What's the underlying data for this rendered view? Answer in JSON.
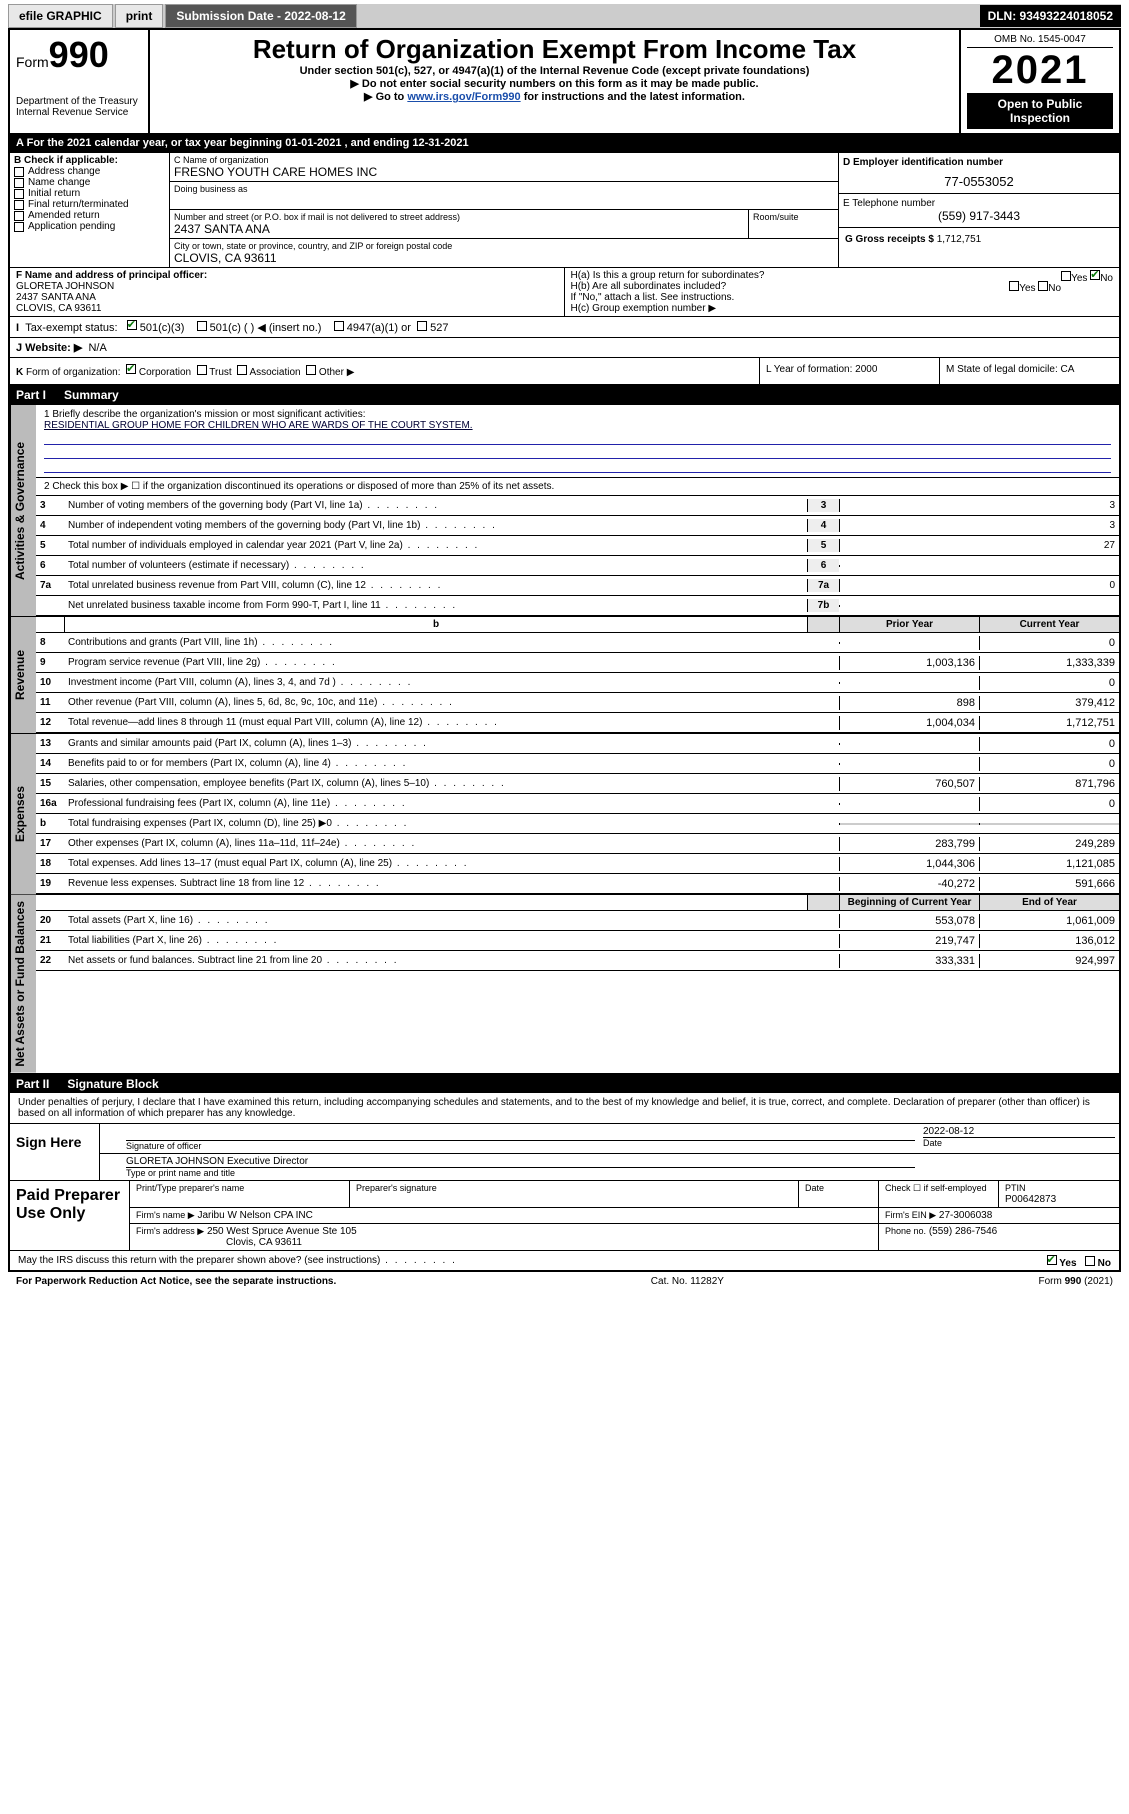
{
  "topbar": {
    "efile": "efile GRAPHIC",
    "print": "print",
    "subdate_lbl": "Submission Date - 2022-08-12",
    "dln": "DLN: 93493224018052"
  },
  "header": {
    "form_pre": "Form",
    "form_num": "990",
    "dept": "Department of the Treasury",
    "irs": "Internal Revenue Service",
    "title": "Return of Organization Exempt From Income Tax",
    "sub1": "Under section 501(c), 527, or 4947(a)(1) of the Internal Revenue Code (except private foundations)",
    "sub2": "▶ Do not enter social security numbers on this form as it may be made public.",
    "sub3_pre": "▶ Go to ",
    "sub3_link": "www.irs.gov/Form990",
    "sub3_post": " for instructions and the latest information.",
    "omb": "OMB No. 1545-0047",
    "year": "2021",
    "open": "Open to Public Inspection"
  },
  "taxyear": "For the 2021 calendar year, or tax year beginning 01-01-2021  , and ending 12-31-2021",
  "boxA": "A",
  "boxB": {
    "title": "B Check if applicable:",
    "items": [
      "Address change",
      "Name change",
      "Initial return",
      "Final return/terminated",
      "Amended return",
      "Application pending"
    ]
  },
  "boxC": {
    "lbl": "C Name of organization",
    "name": "FRESNO YOUTH CARE HOMES INC",
    "dba_lbl": "Doing business as",
    "addr_lbl": "Number and street (or P.O. box if mail is not delivered to street address)",
    "room_lbl": "Room/suite",
    "addr": "2437 SANTA ANA",
    "city_lbl": "City or town, state or province, country, and ZIP or foreign postal code",
    "city": "CLOVIS, CA  93611"
  },
  "boxD": {
    "lbl": "D Employer identification number",
    "val": "77-0553052"
  },
  "boxE": {
    "lbl": "E Telephone number",
    "val": "(559) 917-3443"
  },
  "boxG": {
    "lbl": "G Gross receipts $",
    "val": "1,712,751"
  },
  "boxF": {
    "lbl": "F Name and address of principal officer:",
    "name": "GLORETA JOHNSON",
    "addr": "2437 SANTA ANA",
    "city": "CLOVIS, CA  93611"
  },
  "boxH": {
    "ha": "H(a)  Is this a group return for subordinates?",
    "hb": "H(b)  Are all subordinates included?",
    "hnote": "If \"No,\" attach a list. See instructions.",
    "hc": "H(c)  Group exemption number ▶",
    "yes": "Yes",
    "no": "No"
  },
  "boxI": {
    "lbl": "Tax-exempt status:",
    "c3": "501(c)(3)",
    "c": "501(c) (  ) ◀ (insert no.)",
    "c4947": "4947(a)(1) or",
    "c527": "527"
  },
  "boxJ": {
    "lbl": "J  Website: ▶",
    "val": "N/A"
  },
  "boxK": "K Form of organization:     Corporation     Trust     Association     Other ▶",
  "boxL": {
    "lbl": "L Year of formation:",
    "val": "2000"
  },
  "boxM": {
    "lbl": "M State of legal domicile:",
    "val": "CA"
  },
  "part1": {
    "num": "Part I",
    "title": "Summary"
  },
  "mission": {
    "lbl": "1  Briefly describe the organization's mission or most significant activities:",
    "txt": "RESIDENTIAL GROUP HOME FOR CHILDREN WHO ARE WARDS OF THE COURT SYSTEM."
  },
  "line2": "2  Check this box ▶ ☐  if the organization discontinued its operations or disposed of more than 25% of its net assets.",
  "sidetabs": [
    "Activities & Governance",
    "Revenue",
    "Expenses",
    "Net Assets or Fund Balances"
  ],
  "colhdr": {
    "py": "Prior Year",
    "cy": "Current Year",
    "boy": "Beginning of Current Year",
    "eoy": "End of Year"
  },
  "rows_gov": [
    {
      "n": "3",
      "d": "Number of voting members of the governing body (Part VI, line 1a)",
      "k": "3",
      "v": "3"
    },
    {
      "n": "4",
      "d": "Number of independent voting members of the governing body (Part VI, line 1b)",
      "k": "4",
      "v": "3"
    },
    {
      "n": "5",
      "d": "Total number of individuals employed in calendar year 2021 (Part V, line 2a)",
      "k": "5",
      "v": "27"
    },
    {
      "n": "6",
      "d": "Total number of volunteers (estimate if necessary)",
      "k": "6",
      "v": ""
    },
    {
      "n": "7a",
      "d": "Total unrelated business revenue from Part VIII, column (C), line 12",
      "k": "7a",
      "v": "0"
    },
    {
      "n": "",
      "d": "Net unrelated business taxable income from Form 990-T, Part I, line 11",
      "k": "7b",
      "v": ""
    }
  ],
  "rows_rev": [
    {
      "n": "8",
      "d": "Contributions and grants (Part VIII, line 1h)",
      "py": "",
      "cy": "0"
    },
    {
      "n": "9",
      "d": "Program service revenue (Part VIII, line 2g)",
      "py": "1,003,136",
      "cy": "1,333,339"
    },
    {
      "n": "10",
      "d": "Investment income (Part VIII, column (A), lines 3, 4, and 7d )",
      "py": "",
      "cy": "0"
    },
    {
      "n": "11",
      "d": "Other revenue (Part VIII, column (A), lines 5, 6d, 8c, 9c, 10c, and 11e)",
      "py": "898",
      "cy": "379,412"
    },
    {
      "n": "12",
      "d": "Total revenue—add lines 8 through 11 (must equal Part VIII, column (A), line 12)",
      "py": "1,004,034",
      "cy": "1,712,751"
    }
  ],
  "rows_exp": [
    {
      "n": "13",
      "d": "Grants and similar amounts paid (Part IX, column (A), lines 1–3)",
      "py": "",
      "cy": "0"
    },
    {
      "n": "14",
      "d": "Benefits paid to or for members (Part IX, column (A), line 4)",
      "py": "",
      "cy": "0"
    },
    {
      "n": "15",
      "d": "Salaries, other compensation, employee benefits (Part IX, column (A), lines 5–10)",
      "py": "760,507",
      "cy": "871,796"
    },
    {
      "n": "16a",
      "d": "Professional fundraising fees (Part IX, column (A), line 11e)",
      "py": "",
      "cy": "0"
    },
    {
      "n": "b",
      "d": "Total fundraising expenses (Part IX, column (D), line 25) ▶0",
      "py": "—",
      "cy": "—"
    },
    {
      "n": "17",
      "d": "Other expenses (Part IX, column (A), lines 11a–11d, 11f–24e)",
      "py": "283,799",
      "cy": "249,289"
    },
    {
      "n": "18",
      "d": "Total expenses. Add lines 13–17 (must equal Part IX, column (A), line 25)",
      "py": "1,044,306",
      "cy": "1,121,085"
    },
    {
      "n": "19",
      "d": "Revenue less expenses. Subtract line 18 from line 12",
      "py": "-40,272",
      "cy": "591,666"
    }
  ],
  "rows_net": [
    {
      "n": "20",
      "d": "Total assets (Part X, line 16)",
      "py": "553,078",
      "cy": "1,061,009"
    },
    {
      "n": "21",
      "d": "Total liabilities (Part X, line 26)",
      "py": "219,747",
      "cy": "136,012"
    },
    {
      "n": "22",
      "d": "Net assets or fund balances. Subtract line 21 from line 20",
      "py": "333,331",
      "cy": "924,997"
    }
  ],
  "part2": {
    "num": "Part II",
    "title": "Signature Block"
  },
  "sigpara": "Under penalties of perjury, I declare that I have examined this return, including accompanying schedules and statements, and to the best of my knowledge and belief, it is true, correct, and complete. Declaration of preparer (other than officer) is based on all information of which preparer has any knowledge.",
  "sign": {
    "here": "Sign Here",
    "sigoff": "Signature of officer",
    "date": "Date",
    "dateval": "2022-08-12",
    "name": "GLORETA JOHNSON  Executive Director",
    "name_lbl": "Type or print name and title"
  },
  "paid": {
    "title": "Paid Preparer Use Only",
    "h1": "Print/Type preparer's name",
    "h2": "Preparer's signature",
    "h3": "Date",
    "h4": "Check ☐ if self-employed",
    "h5": "PTIN",
    "ptin": "P00642873",
    "firm_lbl": "Firm's name    ▶",
    "firm": "Jaribu W Nelson CPA INC",
    "ein_lbl": "Firm's EIN ▶",
    "ein": "27-3006038",
    "addr_lbl": "Firm's address ▶",
    "addr": "250 West Spruce Avenue Ste 105",
    "city": "Clovis, CA  93611",
    "phone_lbl": "Phone no.",
    "phone": "(559) 286-7546"
  },
  "maydiscuss": "May the IRS discuss this return with the preparer shown above? (see instructions)",
  "yes": "Yes",
  "no": "No",
  "footer": {
    "pra": "For Paperwork Reduction Act Notice, see the separate instructions.",
    "cat": "Cat. No. 11282Y",
    "form": "Form 990 (2021)"
  }
}
